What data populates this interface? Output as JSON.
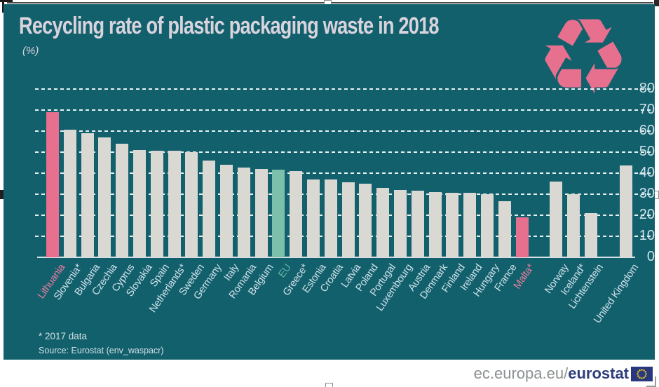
{
  "title": "Recycling rate of plastic packaging waste in 2018",
  "unit_label": "(%)",
  "footnotes": {
    "asterisk": "* 2017 data",
    "source": "Source: Eurostat (env_waspacr)"
  },
  "footer": {
    "url_prefix": "ec.europa.eu/",
    "url_bold": "eurostat"
  },
  "icons": {
    "recycling": "♻",
    "eu_flag": "eu-flag"
  },
  "colors": {
    "background": "#13606D",
    "bar": "#D9D8D3",
    "highlight_bar": "#E7708E",
    "eu_bar": "#7CBFAB",
    "title_text": "#D8D3DC",
    "axis_text": "#CFE2EA",
    "highlight_label": "#EC7D9D",
    "eu_label": "#5FB4A0",
    "footer_url": "#8B9093",
    "footer_bold": "#2E3D7A",
    "flag_blue": "#29387E",
    "flag_stars": "#F7D117"
  },
  "chart_data": {
    "type": "bar",
    "title": "Recycling rate of plastic packaging waste in 2018",
    "ylabel": "(%)",
    "xlabel": "",
    "ylim": [
      0,
      80
    ],
    "yticks": [
      80,
      70,
      60,
      50,
      40,
      30,
      20,
      10,
      0
    ],
    "grid": "dashed-horizontal",
    "legend": "none",
    "bars": [
      {
        "label": "Lithuania",
        "value": 69,
        "style": "highlight",
        "group": "eu-members"
      },
      {
        "label": "Slovenia*",
        "value": 60.5,
        "style": "normal",
        "group": "eu-members"
      },
      {
        "label": "Bulgaria",
        "value": 59,
        "style": "normal",
        "group": "eu-members"
      },
      {
        "label": "Czechia",
        "value": 57,
        "style": "normal",
        "group": "eu-members"
      },
      {
        "label": "Cyprus",
        "value": 54,
        "style": "normal",
        "group": "eu-members"
      },
      {
        "label": "Slovakia",
        "value": 51,
        "style": "normal",
        "group": "eu-members"
      },
      {
        "label": "Spain",
        "value": 50.5,
        "style": "normal",
        "group": "eu-members"
      },
      {
        "label": "Netherlands*",
        "value": 50.5,
        "style": "normal",
        "group": "eu-members"
      },
      {
        "label": "Sweden",
        "value": 50,
        "style": "normal",
        "group": "eu-members"
      },
      {
        "label": "Germany",
        "value": 46,
        "style": "normal",
        "group": "eu-members"
      },
      {
        "label": "Italy",
        "value": 44,
        "style": "normal",
        "group": "eu-members"
      },
      {
        "label": "Romania",
        "value": 42.5,
        "style": "normal",
        "group": "eu-members"
      },
      {
        "label": "Belgium",
        "value": 42,
        "style": "normal",
        "group": "eu-members"
      },
      {
        "label": "EU",
        "value": 41.5,
        "style": "eu",
        "group": "eu-members"
      },
      {
        "label": "Greece*",
        "value": 41,
        "style": "normal",
        "group": "eu-members"
      },
      {
        "label": "Estonia",
        "value": 37,
        "style": "normal",
        "group": "eu-members"
      },
      {
        "label": "Croatia",
        "value": 37,
        "style": "normal",
        "group": "eu-members"
      },
      {
        "label": "Latvia",
        "value": 35.5,
        "style": "normal",
        "group": "eu-members"
      },
      {
        "label": "Poland",
        "value": 35,
        "style": "normal",
        "group": "eu-members"
      },
      {
        "label": "Portugal",
        "value": 33,
        "style": "normal",
        "group": "eu-members"
      },
      {
        "label": "Luxembourg",
        "value": 32,
        "style": "normal",
        "group": "eu-members"
      },
      {
        "label": "Austria",
        "value": 31.5,
        "style": "normal",
        "group": "eu-members"
      },
      {
        "label": "Denmark",
        "value": 31,
        "style": "normal",
        "group": "eu-members"
      },
      {
        "label": "Finland",
        "value": 30.5,
        "style": "normal",
        "group": "eu-members"
      },
      {
        "label": "Ireland",
        "value": 30.5,
        "style": "normal",
        "group": "eu-members"
      },
      {
        "label": "Hungary",
        "value": 30,
        "style": "normal",
        "group": "eu-members"
      },
      {
        "label": "France",
        "value": 26.5,
        "style": "normal",
        "group": "eu-members"
      },
      {
        "label": "Malta*",
        "value": 19,
        "style": "highlight",
        "group": "eu-members"
      },
      {
        "label": "Norway",
        "value": 36,
        "style": "normal",
        "group": "efta"
      },
      {
        "label": "Iceland*",
        "value": 30,
        "style": "normal",
        "group": "efta"
      },
      {
        "label": "Lichtenstein",
        "value": 21,
        "style": "normal",
        "group": "efta"
      },
      {
        "label": "United Kingdom",
        "value": 43.5,
        "style": "normal",
        "group": "other"
      }
    ]
  }
}
